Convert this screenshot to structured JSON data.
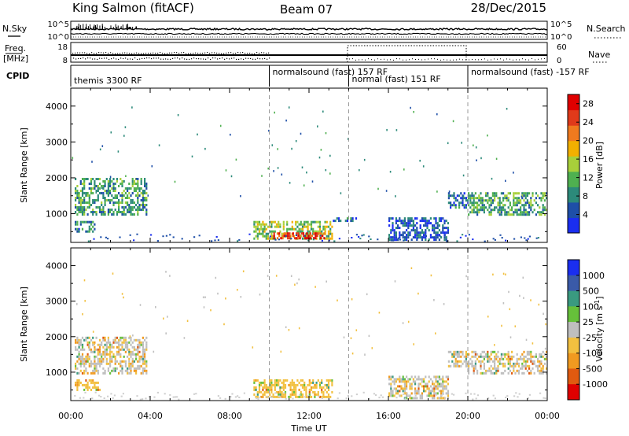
{
  "header": {
    "station": "King Salmon (fitACF)",
    "beam": "Beam 07",
    "date": "28/Dec/2015"
  },
  "status_panels": {
    "nsky_label": "N.Sky",
    "nsky_ticks": [
      "10^5",
      "10^0"
    ],
    "nsearch_label": "N.Search",
    "nsearch_ticks": [
      "10^5",
      "10^0"
    ],
    "freq_label": "Freq.",
    "freq_unit": "[MHz]",
    "freq_ticks": [
      "18",
      "8"
    ],
    "nave_label": "Nave",
    "nave_ticks": [
      "60",
      "0"
    ],
    "cpid_label": "CPID"
  },
  "cpid_segments": [
    {
      "label": "themis 3300 RF",
      "start_h": 0,
      "end_h": 10
    },
    {
      "label": "normalsound (fast) 157 RF",
      "start_h": 10,
      "end_h": 14
    },
    {
      "label": "normal (fast) 151 RF",
      "start_h": 14,
      "end_h": 20
    },
    {
      "label": "normalsound (fast) -157 RF",
      "start_h": 20,
      "end_h": 24
    }
  ],
  "x_axis": {
    "label": "Time UT",
    "range_h": [
      0,
      24
    ],
    "tick_labels": [
      "00:00",
      "04:00",
      "08:00",
      "12:00",
      "16:00",
      "20:00",
      "00:00"
    ]
  },
  "colors": {
    "power": [
      "#1a2ef0",
      "#1e4fa8",
      "#2c8a7a",
      "#4fb050",
      "#a8d03a",
      "#f2b000",
      "#f07a1e",
      "#e03a1a",
      "#e00000"
    ],
    "velocity": [
      "#1a2ef0",
      "#3a5aa8",
      "#3a9a80",
      "#66c03a",
      "#bfbfbf",
      "#f2c040",
      "#f09a20",
      "#e05a10",
      "#e00000"
    ]
  },
  "chart_data": [
    {
      "type": "heatmap",
      "name": "power",
      "ylabel": "Slant Range [km]",
      "y_ticks": [
        "1000",
        "2000",
        "3000",
        "4000"
      ],
      "ylim": [
        200,
        4500
      ],
      "xlim": [
        0,
        24
      ],
      "colorbar": {
        "label": "Power [dB]",
        "range": [
          0,
          30
        ],
        "tick_labels": [
          "4",
          "8",
          "12",
          "16",
          "20",
          "24",
          "28"
        ]
      },
      "echo_regions": [
        {
          "t": [
            0.2,
            3.8
          ],
          "r": [
            1000,
            2000
          ],
          "value": 10
        },
        {
          "t": [
            0.2,
            1.2
          ],
          "r": [
            500,
            800
          ],
          "value": 8
        },
        {
          "t": [
            9.2,
            13.2
          ],
          "r": [
            300,
            800
          ],
          "value": 14
        },
        {
          "t": [
            10.2,
            12.8
          ],
          "r": [
            300,
            480
          ],
          "value": 26
        },
        {
          "t": [
            13.2,
            14.4
          ],
          "r": [
            800,
            900
          ],
          "value": 6
        },
        {
          "t": [
            16.0,
            19.0
          ],
          "r": [
            300,
            900
          ],
          "value": 5
        },
        {
          "t": [
            19.0,
            20.0
          ],
          "r": [
            1200,
            1600
          ],
          "value": 6
        },
        {
          "t": [
            20.0,
            24.0
          ],
          "r": [
            1000,
            1600
          ],
          "value": 10
        }
      ]
    },
    {
      "type": "heatmap",
      "name": "velocity",
      "ylabel": "Slant Range [km]",
      "y_ticks": [
        "1000",
        "2000",
        "3000",
        "4000"
      ],
      "ylim": [
        200,
        4500
      ],
      "xlim": [
        0,
        24
      ],
      "colorbar": {
        "label": "Velocity [m s^-1]",
        "tick_labels": [
          "1000",
          "500",
          "100",
          "25",
          "-25",
          "-100",
          "-500",
          "-1000"
        ]
      },
      "echo_regions": [
        {
          "t": [
            0.2,
            3.8
          ],
          "r": [
            1000,
            2000
          ],
          "value": 0
        },
        {
          "t": [
            0.2,
            1.5
          ],
          "r": [
            500,
            800
          ],
          "value": -80
        },
        {
          "t": [
            9.2,
            13.2
          ],
          "r": [
            300,
            800
          ],
          "value": -90
        },
        {
          "t": [
            16.0,
            19.0
          ],
          "r": [
            300,
            900
          ],
          "value": -20
        },
        {
          "t": [
            19.0,
            20.0
          ],
          "r": [
            1200,
            1600
          ],
          "value": 0
        },
        {
          "t": [
            20.0,
            24.0
          ],
          "r": [
            1000,
            1600
          ],
          "value": 0
        }
      ]
    }
  ]
}
